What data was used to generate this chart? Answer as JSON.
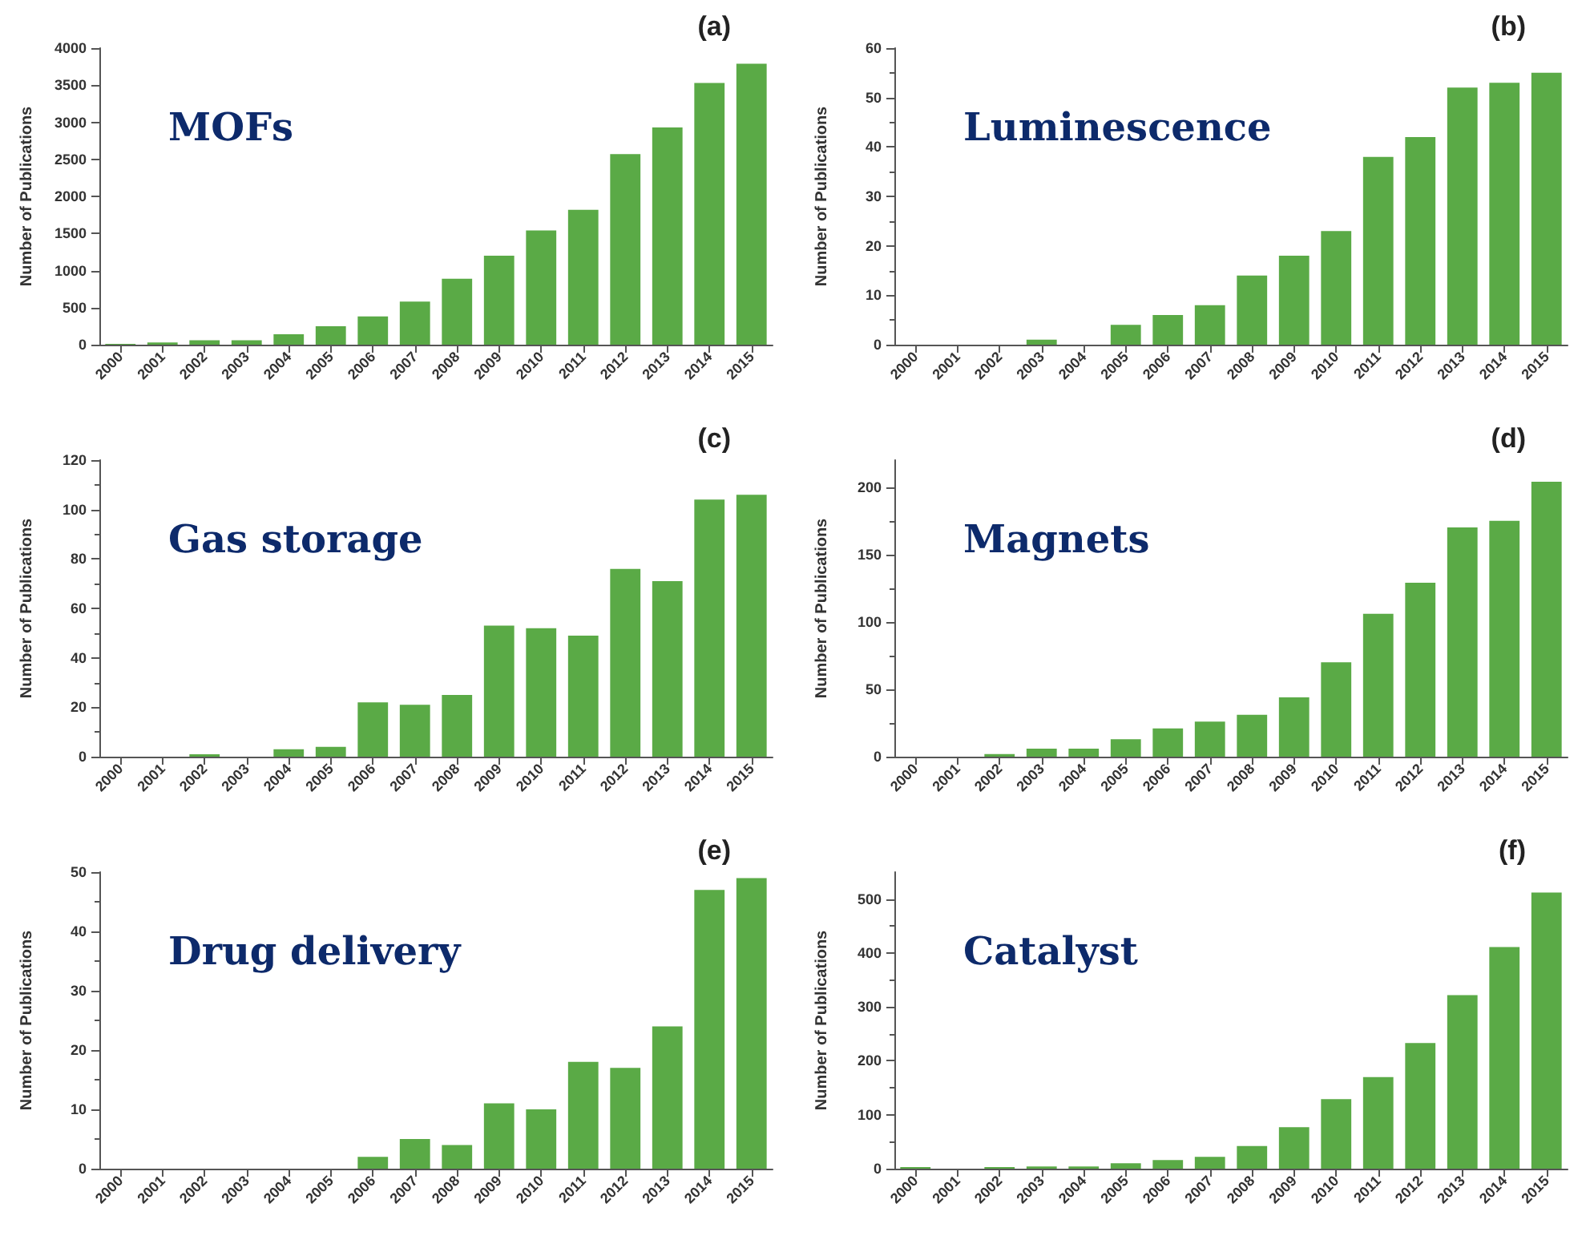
{
  "chart_data": [
    {
      "type": "bar",
      "title": "MOFs",
      "annotations": [
        "(a)"
      ],
      "ylabel": "Number of Publications",
      "categories": [
        "2000",
        "2001",
        "2002",
        "2003",
        "2004",
        "2005",
        "2006",
        "2007",
        "2008",
        "2009",
        "2010",
        "2011",
        "2012",
        "2013",
        "2014",
        "2015"
      ],
      "values": [
        10,
        30,
        60,
        60,
        140,
        250,
        380,
        580,
        890,
        1200,
        1540,
        1820,
        2570,
        2930,
        3530,
        3790
      ],
      "color": "#5aaa46",
      "ylim": [
        0,
        4000
      ],
      "yticks": [
        0,
        500,
        1000,
        1500,
        2000,
        2500,
        3000,
        3500,
        4000
      ],
      "grid": false
    },
    {
      "type": "bar",
      "title": "Luminescence",
      "annotations": [
        "(b)"
      ],
      "ylabel": "Number of Publications",
      "categories": [
        "2000",
        "2001",
        "2002",
        "2003",
        "2004",
        "2005",
        "2006",
        "2007",
        "2008",
        "2009",
        "2010",
        "2011",
        "2012",
        "2013",
        "2014",
        "2015"
      ],
      "values": [
        0,
        0,
        0,
        1,
        0,
        4,
        6,
        8,
        14,
        18,
        23,
        38,
        42,
        52,
        53,
        55
      ],
      "color": "#5aaa46",
      "ylim": [
        0,
        60
      ],
      "yticks": [
        0,
        10,
        20,
        30,
        40,
        50,
        60
      ],
      "grid": false
    },
    {
      "type": "bar",
      "title": "Gas storage",
      "annotations": [
        "(c)"
      ],
      "ylabel": "Number of Publications",
      "categories": [
        "2000",
        "2001",
        "2002",
        "2003",
        "2004",
        "2005",
        "2006",
        "2007",
        "2008",
        "2009",
        "2010",
        "2011",
        "2012",
        "2013",
        "2014",
        "2015"
      ],
      "values": [
        0,
        0,
        1,
        0,
        3,
        4,
        22,
        21,
        25,
        53,
        52,
        49,
        76,
        71,
        104,
        106
      ],
      "color": "#5aaa46",
      "ylim": [
        0,
        120
      ],
      "yticks": [
        0,
        20,
        40,
        60,
        80,
        100,
        120
      ],
      "grid": false
    },
    {
      "type": "bar",
      "title": "Magnets",
      "annotations": [
        "(d)"
      ],
      "ylabel": "Number of Publications",
      "categories": [
        "2000",
        "2001",
        "2002",
        "2003",
        "2004",
        "2005",
        "2006",
        "2007",
        "2008",
        "2009",
        "2010",
        "2011",
        "2012",
        "2013",
        "2014",
        "2015"
      ],
      "values": [
        0,
        0,
        2,
        6,
        6,
        13,
        21,
        26,
        31,
        44,
        70,
        106,
        129,
        170,
        175,
        204
      ],
      "color": "#5aaa46",
      "ylim": [
        0,
        220
      ],
      "yticks": [
        0,
        50,
        100,
        150,
        200
      ],
      "grid": false
    },
    {
      "type": "bar",
      "title": "Drug delivery",
      "annotations": [
        "(e)"
      ],
      "ylabel": "Number of Publications",
      "categories": [
        "2000",
        "2001",
        "2002",
        "2003",
        "2004",
        "2005",
        "2006",
        "2007",
        "2008",
        "2009",
        "2010",
        "2011",
        "2012",
        "2013",
        "2014",
        "2015"
      ],
      "values": [
        0,
        0,
        0,
        0,
        0,
        0,
        2,
        5,
        4,
        11,
        10,
        18,
        17,
        24,
        47,
        49
      ],
      "color": "#5aaa46",
      "ylim": [
        0,
        50
      ],
      "yticks": [
        0,
        10,
        20,
        30,
        40,
        50
      ],
      "grid": false
    },
    {
      "type": "bar",
      "title": "Catalyst",
      "annotations": [
        "(f)"
      ],
      "ylabel": "Number of Publications",
      "categories": [
        "2000",
        "2001",
        "2002",
        "2003",
        "2004",
        "2005",
        "2006",
        "2007",
        "2008",
        "2009",
        "2010",
        "2011",
        "2012",
        "2013",
        "2014",
        "2015"
      ],
      "values": [
        3,
        0,
        3,
        4,
        4,
        10,
        16,
        22,
        42,
        77,
        129,
        170,
        233,
        322,
        411,
        512
      ],
      "color": "#5aaa46",
      "ylim": [
        0,
        550
      ],
      "yticks": [
        0,
        100,
        200,
        300,
        400,
        500
      ],
      "grid": false
    }
  ]
}
